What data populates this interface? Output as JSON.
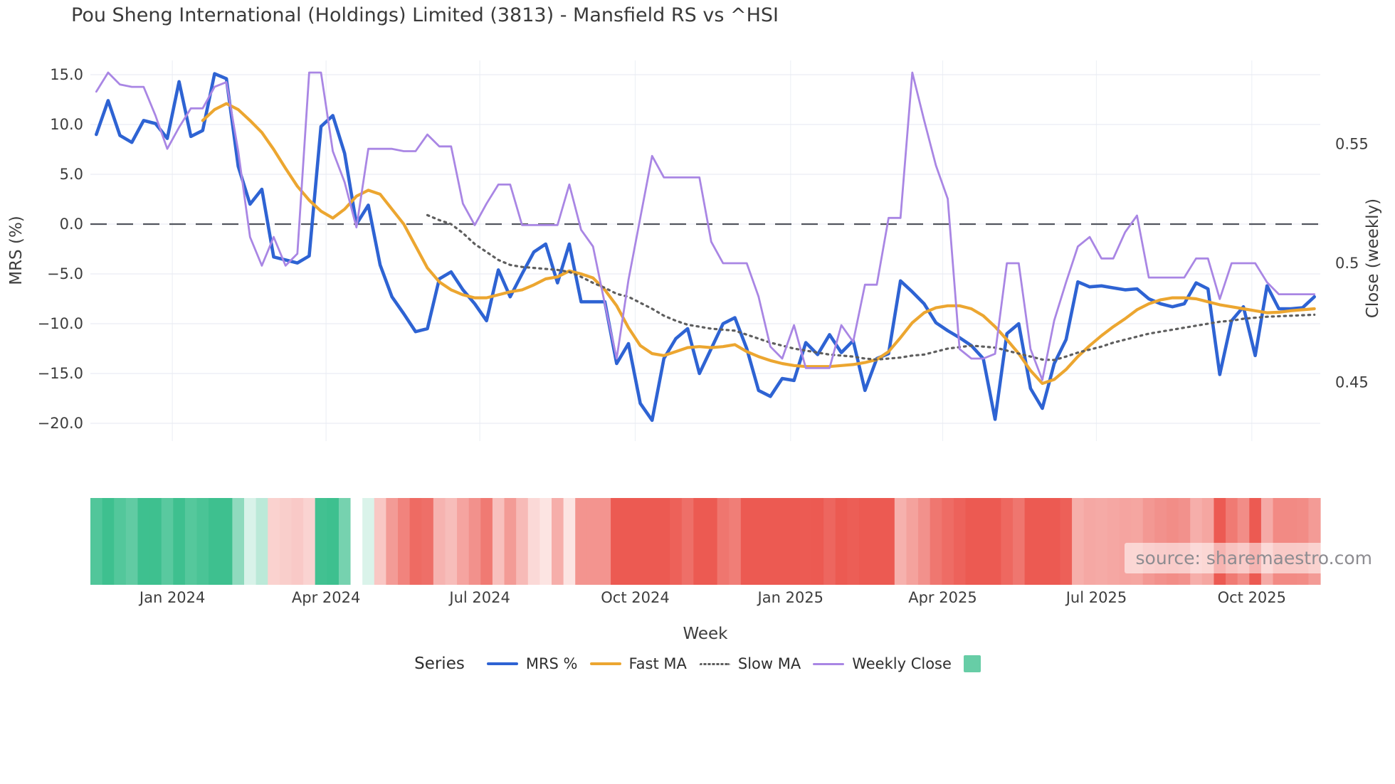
{
  "title": "Pou Sheng International (Holdings) Limited (3813) - Mansfield RS vs ^HSI",
  "watermark": "source: sharemaestro.com",
  "axes": {
    "left": {
      "title": "MRS (%)",
      "tick_labels": [
        "15.0",
        "10.0",
        "5.0",
        "0.0",
        "−5.0",
        "−10.0",
        "−15.0",
        "−20.0"
      ],
      "tick_values": [
        15,
        10,
        5,
        0,
        -5,
        -10,
        -15,
        -20
      ]
    },
    "right": {
      "title": "Close (weekly)",
      "tick_labels": [
        "0.55",
        "0.5",
        "0.45"
      ],
      "tick_values": [
        0.55,
        0.5,
        0.45
      ]
    },
    "x": {
      "title": "Week",
      "ticks": [
        {
          "label": "Jan 2024",
          "week": 6.43
        },
        {
          "label": "Apr 2024",
          "week": 19.43
        },
        {
          "label": "Jul 2024",
          "week": 32.43
        },
        {
          "label": "Oct 2024",
          "week": 45.57
        },
        {
          "label": "Jan 2025",
          "week": 58.71
        },
        {
          "label": "Apr 2025",
          "week": 71.57
        },
        {
          "label": "Jul 2025",
          "week": 84.57
        },
        {
          "label": "Oct 2025",
          "week": 97.71
        }
      ]
    }
  },
  "legend": {
    "title": "Series",
    "items": [
      {
        "label": "MRS %",
        "type": "line",
        "color": "#2e63d3"
      },
      {
        "label": "Fast MA",
        "type": "line",
        "color": "#eca630"
      },
      {
        "label": "Slow MA",
        "type": "dotted",
        "color": "#5e5e5e"
      },
      {
        "label": "Weekly Close",
        "type": "line-thin",
        "color": "#a986e4"
      },
      {
        "label": "",
        "type": "square",
        "color": "#67cda6"
      }
    ]
  },
  "colors": {
    "grid": "#e9ecf3",
    "grid_vertical": "#eef1f6",
    "zero_line": "#52555e",
    "heat_positive": "#3ec08f",
    "heat_negative": "#ec5a52",
    "heat_neutral": "#ffffff",
    "text": "#3d3d3d"
  },
  "chart_data": {
    "type": "line",
    "weeks": 104,
    "xlabel": "Week",
    "left_ylabel": "MRS (%)",
    "right_ylabel": "Close (weekly)",
    "left_ylim": [
      -22.5,
      16.5
    ],
    "left_ticks": [
      15,
      10,
      5,
      0,
      -5,
      -10,
      -15,
      -20
    ],
    "right_ticks": [
      0.55,
      0.5,
      0.45
    ],
    "zero_reference_line": 0,
    "grid": true,
    "legend_position": "bottom",
    "series": [
      {
        "name": "MRS %",
        "axis": "left",
        "color": "#2e63d3",
        "style": "solid",
        "values": [
          9.0,
          12.4,
          8.9,
          8.2,
          10.4,
          10.1,
          8.6,
          14.3,
          8.8,
          9.4,
          15.1,
          14.6,
          5.8,
          2.0,
          3.5,
          -3.3,
          -3.6,
          -3.9,
          -3.2,
          9.8,
          10.9,
          7.1,
          0.0,
          1.9,
          -4.1,
          -7.3,
          -9.0,
          -10.8,
          -10.5,
          -5.5,
          -4.8,
          -6.6,
          -8.0,
          -9.7,
          -4.6,
          -7.3,
          -5.0,
          -2.8,
          -2.0,
          -5.9,
          -2.0,
          -7.8,
          -7.8,
          -7.8,
          -14.0,
          -12.0,
          -18.0,
          -19.7,
          -13.5,
          -11.5,
          -10.5,
          -15.0,
          -12.5,
          -10.0,
          -9.4,
          -12.5,
          -16.7,
          -17.3,
          -15.5,
          -15.7,
          -11.9,
          -13.1,
          -11.1,
          -12.9,
          -11.7,
          -16.7,
          -13.5,
          -13.0,
          -5.7,
          -6.8,
          -8.0,
          -9.9,
          -10.7,
          -11.4,
          -12.2,
          -13.5,
          -19.6,
          -11.0,
          -10.0,
          -16.5,
          -18.5,
          -14.0,
          -11.6,
          -5.8,
          -6.3,
          -6.2,
          -6.4,
          -6.6,
          -6.5,
          -7.5,
          -8.0,
          -8.3,
          -8.0,
          -5.9,
          -6.5,
          -15.1,
          -9.7,
          -8.3,
          -13.2,
          -6.2,
          -8.5,
          -8.5,
          -8.4,
          -7.3
        ]
      },
      {
        "name": "Fast MA",
        "axis": "left",
        "color": "#eca630",
        "style": "solid",
        "values": [
          null,
          null,
          null,
          null,
          null,
          null,
          null,
          null,
          null,
          10.4,
          11.5,
          12.1,
          11.5,
          10.4,
          9.2,
          7.5,
          5.6,
          3.8,
          2.4,
          1.3,
          0.6,
          1.5,
          2.8,
          3.4,
          3.0,
          1.5,
          0.0,
          -2.2,
          -4.4,
          -5.8,
          -6.6,
          -7.1,
          -7.4,
          -7.4,
          -7.1,
          -6.8,
          -6.6,
          -6.1,
          -5.5,
          -5.3,
          -4.7,
          -5.0,
          -5.4,
          -6.6,
          -8.2,
          -10.4,
          -12.2,
          -13.0,
          -13.2,
          -12.8,
          -12.4,
          -12.3,
          -12.4,
          -12.3,
          -12.1,
          -12.8,
          -13.3,
          -13.7,
          -14.0,
          -14.2,
          -14.3,
          -14.3,
          -14.3,
          -14.2,
          -14.1,
          -13.9,
          -13.6,
          -12.8,
          -11.4,
          -9.9,
          -8.9,
          -8.4,
          -8.2,
          -8.2,
          -8.5,
          -9.2,
          -10.3,
          -11.6,
          -13.0,
          -14.7,
          -16.0,
          -15.6,
          -14.6,
          -13.3,
          -12.2,
          -11.2,
          -10.3,
          -9.5,
          -8.6,
          -8.0,
          -7.6,
          -7.4,
          -7.4,
          -7.5,
          -7.8,
          -8.1,
          -8.3,
          -8.5,
          -8.7,
          -8.9,
          -8.85,
          -8.7,
          -8.6,
          -8.5
        ]
      },
      {
        "name": "Slow MA",
        "axis": "left",
        "color": "#5e5e5e",
        "style": "dotted",
        "values": [
          null,
          null,
          null,
          null,
          null,
          null,
          null,
          null,
          null,
          null,
          null,
          null,
          null,
          null,
          null,
          null,
          null,
          null,
          null,
          null,
          null,
          null,
          null,
          null,
          null,
          null,
          null,
          null,
          0.9,
          0.4,
          0.0,
          -0.9,
          -2.0,
          -2.8,
          -3.6,
          -4.1,
          -4.3,
          -4.4,
          -4.5,
          -4.6,
          -4.8,
          -5.3,
          -5.9,
          -6.4,
          -7.0,
          -7.3,
          -7.9,
          -8.5,
          -9.2,
          -9.7,
          -10.1,
          -10.3,
          -10.5,
          -10.6,
          -10.7,
          -11.1,
          -11.5,
          -11.9,
          -12.2,
          -12.5,
          -12.7,
          -12.9,
          -13.1,
          -13.2,
          -13.3,
          -13.5,
          -13.6,
          -13.5,
          -13.4,
          -13.2,
          -13.1,
          -12.8,
          -12.5,
          -12.35,
          -12.2,
          -12.3,
          -12.4,
          -12.7,
          -13.0,
          -13.3,
          -13.6,
          -13.65,
          -13.3,
          -12.9,
          -12.6,
          -12.3,
          -11.9,
          -11.6,
          -11.3,
          -11.0,
          -10.8,
          -10.6,
          -10.4,
          -10.2,
          -10.0,
          -9.8,
          -9.7,
          -9.5,
          -9.4,
          -9.3,
          -9.25,
          -9.2,
          -9.15,
          -9.1
        ]
      },
      {
        "name": "Weekly Close",
        "axis": "right",
        "color": "#a986e4",
        "style": "solid",
        "values": [
          0.572,
          0.58,
          0.575,
          0.574,
          0.574,
          0.562,
          0.548,
          0.557,
          0.565,
          0.565,
          0.574,
          0.576,
          0.547,
          0.511,
          0.499,
          0.511,
          0.499,
          0.504,
          0.58,
          0.58,
          0.547,
          0.534,
          0.515,
          0.548,
          0.548,
          0.548,
          0.547,
          0.547,
          0.554,
          0.549,
          0.549,
          0.525,
          0.516,
          0.525,
          0.533,
          0.533,
          0.516,
          0.516,
          0.516,
          0.516,
          0.533,
          0.514,
          0.507,
          0.483,
          0.46,
          0.493,
          0.519,
          0.545,
          0.536,
          0.536,
          0.536,
          0.536,
          0.509,
          0.5,
          0.5,
          0.5,
          0.486,
          0.465,
          0.46,
          0.474,
          0.456,
          0.456,
          0.456,
          0.474,
          0.467,
          0.491,
          0.491,
          0.519,
          0.519,
          0.58,
          0.56,
          0.541,
          0.527,
          0.464,
          0.46,
          0.46,
          0.462,
          0.5,
          0.5,
          0.464,
          0.451,
          0.476,
          0.492,
          0.507,
          0.511,
          0.502,
          0.502,
          0.513,
          0.52,
          0.494,
          0.494,
          0.494,
          0.494,
          0.502,
          0.502,
          0.485,
          0.5,
          0.5,
          0.5,
          0.492,
          0.487,
          0.487,
          0.487,
          0.487
        ]
      }
    ],
    "heatmap_strip": {
      "colored_by": "MRS %",
      "positive_color": "#3ec08f",
      "negative_color": "#ec5a52",
      "neutral_color": "#ffffff"
    }
  }
}
